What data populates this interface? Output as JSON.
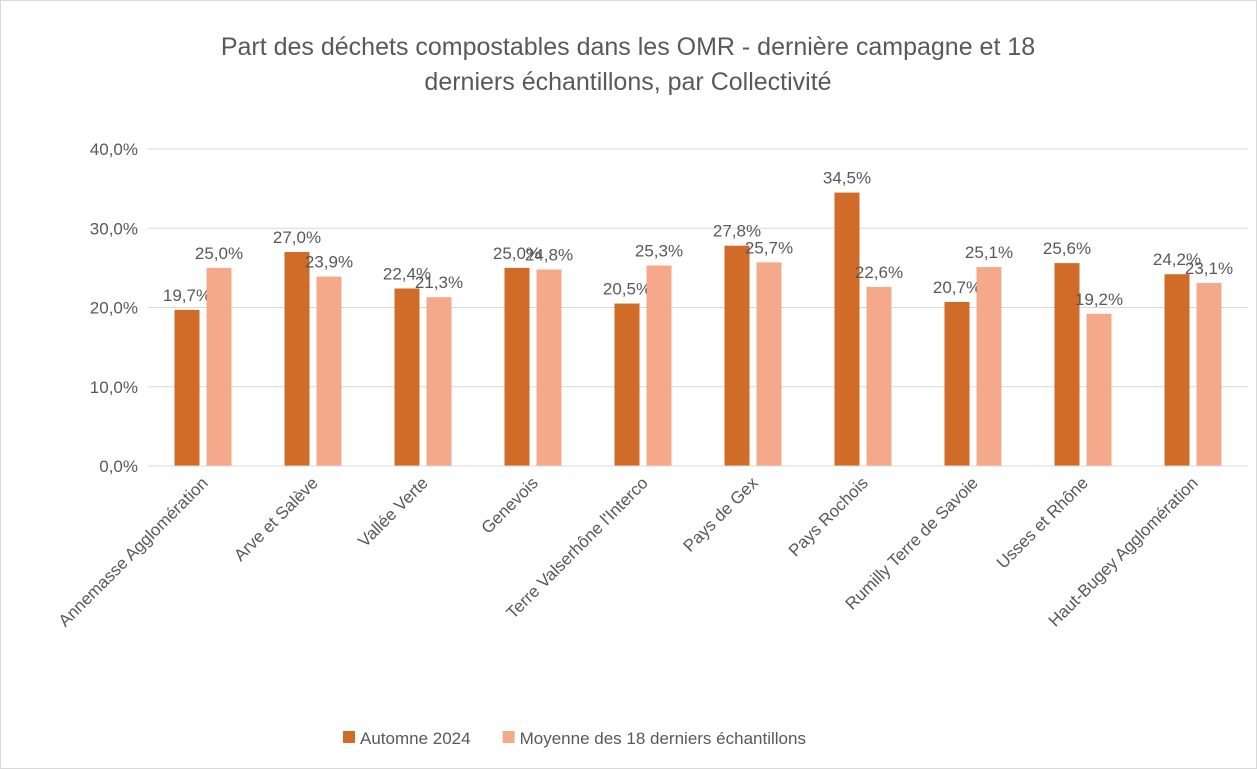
{
  "chart_data": {
    "type": "bar",
    "title": "Part des déchets compostables dans les OMR - dernière campagne et 18 derniers échantillons, par Collectivité",
    "categories": [
      "Annemasse Agglomération",
      "Arve et Salève",
      "Vallée Verte",
      "Genevois",
      "Terre Valserhône l'Interco",
      "Pays de Gex",
      "Pays Rochois",
      "Rumilly Terre de Savoie",
      "Usses et Rhône",
      "Haut-Bugey Agglomération"
    ],
    "series": [
      {
        "name": "Automne 2024",
        "color": "#d16b28",
        "values": [
          19.7,
          27.0,
          22.4,
          25.0,
          20.5,
          27.8,
          34.5,
          20.7,
          25.6,
          24.2
        ],
        "value_labels": [
          "19,7%",
          "27,0%",
          "22,4%",
          "25,0%",
          "20,5%",
          "27,8%",
          "34,5%",
          "20,7%",
          "25,6%",
          "24,2%"
        ]
      },
      {
        "name": "Moyenne des 18 derniers échantillons",
        "color": "#f4a98a",
        "values": [
          25.0,
          23.9,
          21.3,
          24.8,
          25.3,
          25.7,
          22.6,
          25.1,
          19.2,
          23.1
        ],
        "value_labels": [
          "25,0%",
          "23,9%",
          "21,3%",
          "24,8%",
          "25,3%",
          "25,7%",
          "22,6%",
          "25,1%",
          "19,2%",
          "23,1%"
        ]
      }
    ],
    "ylim": [
      0,
      40
    ],
    "yticks": [
      {
        "value": 0,
        "label": "0,0%"
      },
      {
        "value": 10,
        "label": "10,0%"
      },
      {
        "value": 20,
        "label": "20,0%"
      },
      {
        "value": 30,
        "label": "30,0%"
      },
      {
        "value": 40,
        "label": "40,0%"
      }
    ],
    "grid": true,
    "legend": "bottom"
  }
}
